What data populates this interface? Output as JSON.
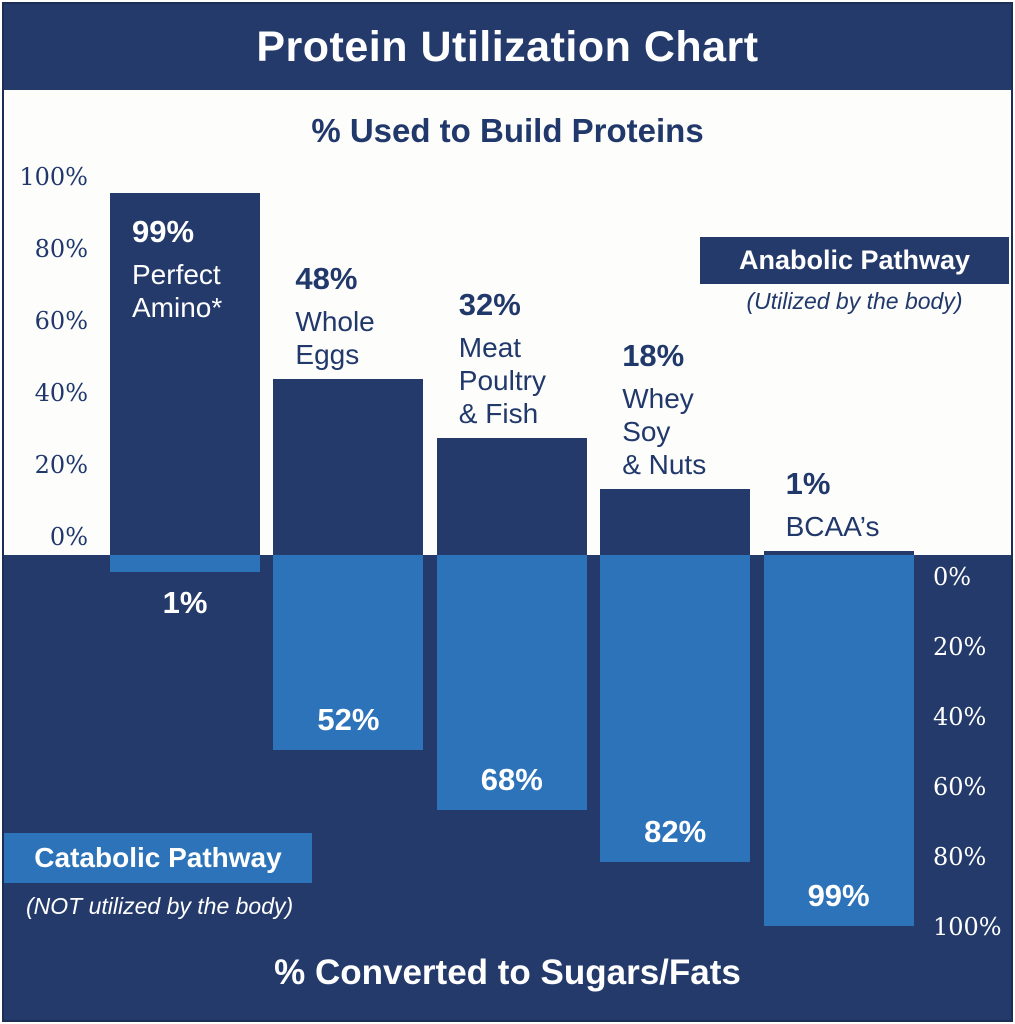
{
  "title": "Protein Utilization Chart",
  "subtitle_top": "% Used to Build Proteins",
  "subtitle_bottom": "% Converted to Sugars/Fats",
  "legend": {
    "anabolic": {
      "label": "Anabolic Pathway",
      "sublabel": "(Utilized by the body)"
    },
    "catabolic": {
      "label": "Catabolic Pathway",
      "sublabel": "(NOT utilized by the body)"
    }
  },
  "axes": {
    "left_ticks": [
      "100%",
      "80%",
      "60%",
      "40%",
      "20%",
      "0%"
    ],
    "right_ticks": [
      "0%",
      "20%",
      "40%",
      "60%",
      "80%",
      "100%"
    ]
  },
  "colors": {
    "navy": "#243a6b",
    "light_blue": "#2d73b9",
    "off_white": "#fdfdfb",
    "text_navy": "#21386b",
    "border_navy": "#1b2e55",
    "white": "#ffffff"
  },
  "bars": [
    {
      "category_lines": [
        "Perfect",
        "Amino*"
      ],
      "anabolic_label": "99%",
      "anabolic_value": 99,
      "catabolic_label": "1%",
      "catabolic_value": 1,
      "top_label_placement": "inside"
    },
    {
      "category_lines": [
        "Whole",
        "Eggs"
      ],
      "anabolic_label": "48%",
      "anabolic_value": 48,
      "catabolic_label": "52%",
      "catabolic_value": 52,
      "top_label_placement": "above"
    },
    {
      "category_lines": [
        "Meat",
        "Poultry",
        "& Fish"
      ],
      "anabolic_label": "32%",
      "anabolic_value": 32,
      "catabolic_label": "68%",
      "catabolic_value": 68,
      "top_label_placement": "above"
    },
    {
      "category_lines": [
        "Whey",
        "Soy",
        "& Nuts"
      ],
      "anabolic_label": "18%",
      "anabolic_value": 18,
      "catabolic_label": "82%",
      "catabolic_value": 82,
      "top_label_placement": "above"
    },
    {
      "category_lines": [
        "BCAA’s"
      ],
      "anabolic_label": "1%",
      "anabolic_value": 1,
      "catabolic_label": "99%",
      "catabolic_value": 99,
      "top_label_placement": "above"
    }
  ],
  "chart_data": {
    "type": "bar",
    "orientation": "diverging-vertical",
    "title": "Protein Utilization Chart",
    "top_axis_title": "% Used to Build Proteins",
    "bottom_axis_title": "% Converted to Sugars/Fats",
    "categories": [
      "Perfect Amino*",
      "Whole Eggs",
      "Meat Poultry & Fish",
      "Whey Soy & Nuts",
      "BCAA’s"
    ],
    "series": [
      {
        "name": "Anabolic Pathway (Utilized by the body) — % Used to Build Proteins",
        "values": [
          99,
          48,
          32,
          18,
          1
        ]
      },
      {
        "name": "Catabolic Pathway (NOT utilized by the body) — % Converted to Sugars/Fats",
        "values": [
          1,
          52,
          68,
          82,
          99
        ]
      }
    ],
    "value_labels": {
      "anabolic": [
        "99%",
        "48%",
        "32%",
        "18%",
        "1%"
      ],
      "catabolic": [
        "1%",
        "52%",
        "68%",
        "82%",
        "99%"
      ]
    },
    "ylim": [
      0,
      100
    ],
    "grid": false,
    "legend_position": {
      "anabolic": "top-right",
      "catabolic": "bottom-left"
    }
  }
}
